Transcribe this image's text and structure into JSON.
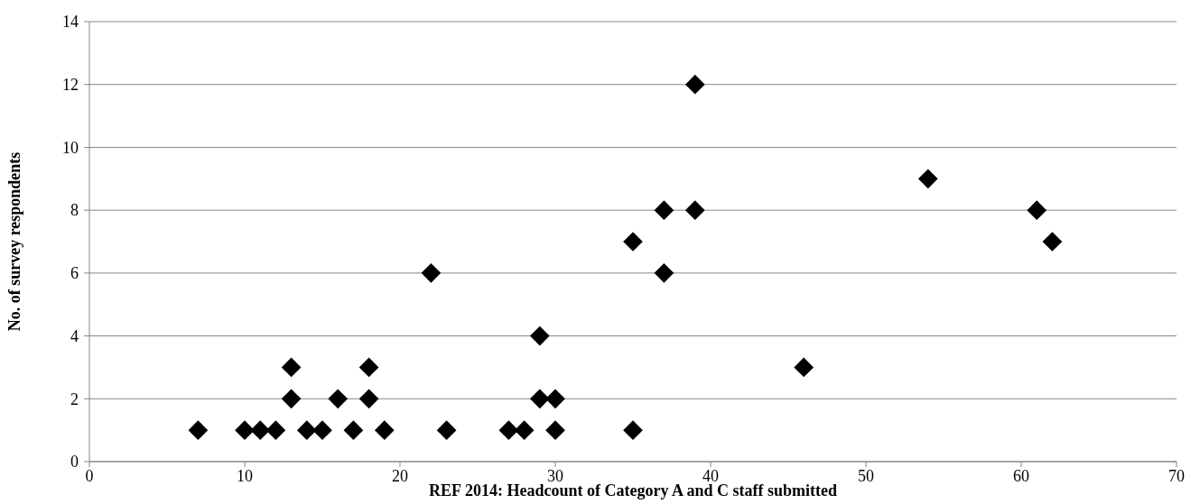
{
  "chart_data": {
    "type": "scatter",
    "xlabel": "REF 2014: Headcount of Category A and C staff submitted",
    "ylabel": "No. of survey respondents",
    "x": [
      7,
      10,
      11,
      12,
      13,
      13,
      14,
      15,
      16,
      17,
      18,
      18,
      19,
      22,
      23,
      27,
      28,
      29,
      29,
      30,
      30,
      35,
      35,
      37,
      37,
      39,
      39,
      46,
      54,
      61,
      62
    ],
    "series": [
      {
        "color": "#000000",
        "values": [
          1,
          1,
          1,
          1,
          3,
          2,
          1,
          1,
          2,
          1,
          3,
          2,
          1,
          6,
          1,
          1,
          1,
          4,
          2,
          2,
          1,
          7,
          1,
          8,
          6,
          12,
          8,
          3,
          9,
          8,
          7
        ]
      }
    ],
    "xlim": [
      0,
      70
    ],
    "xticks": [
      0,
      10,
      20,
      30,
      40,
      50,
      60,
      70
    ],
    "ylim": [
      0,
      14
    ],
    "yticks": [
      0,
      2,
      4,
      6,
      8,
      10,
      12,
      14
    ],
    "grid": "y",
    "marker": "diamond"
  }
}
